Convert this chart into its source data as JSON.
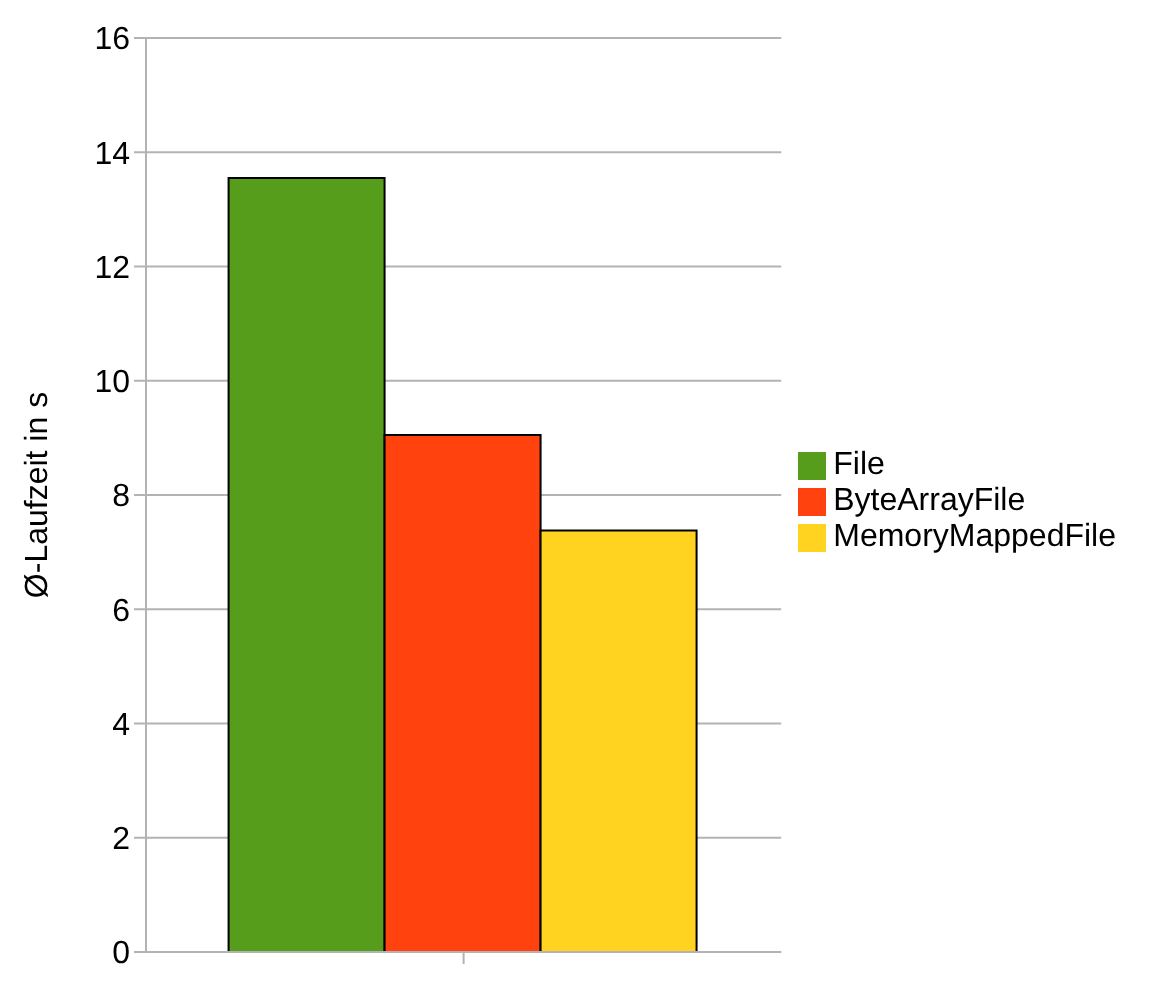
{
  "chart_data": {
    "type": "bar",
    "ylabel": "Ø-Laufzeit in s",
    "categories": [
      null
    ],
    "series": [
      {
        "name": "File",
        "color": "#579d1c",
        "values": [
          13.55
        ]
      },
      {
        "name": "ByteArrayFile",
        "color": "#ff420e",
        "values": [
          9.05
        ]
      },
      {
        "name": "MemoryMappedFile",
        "color": "#ffd320",
        "values": [
          7.38
        ]
      }
    ],
    "ylim": [
      0,
      16
    ],
    "yticks": [
      0,
      2,
      4,
      6,
      8,
      10,
      12,
      14,
      16
    ],
    "grid": "y",
    "legend": "right"
  }
}
